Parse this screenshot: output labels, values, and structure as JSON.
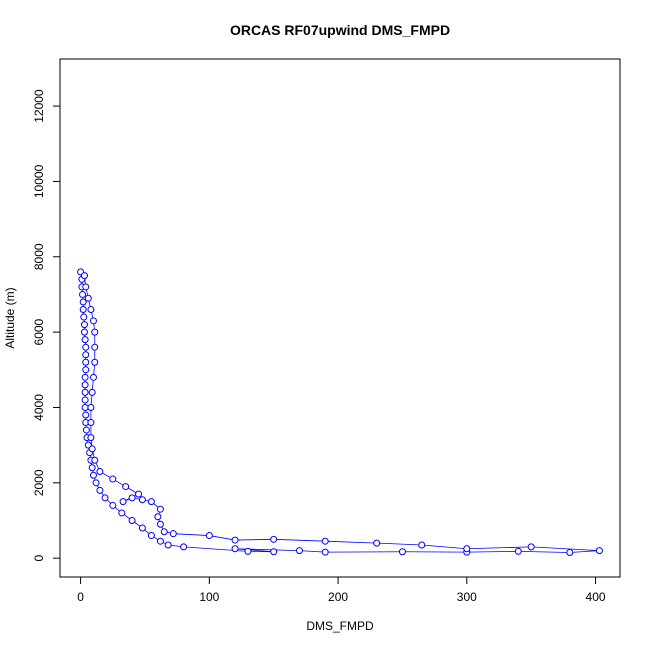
{
  "chart_data": {
    "type": "scatter",
    "title": "ORCAS RF07upwind DMS_FMPD",
    "xlabel": "DMS_FMPD",
    "ylabel": "Altitude (m)",
    "xlim": [
      -16,
      419
    ],
    "ylim": [
      -500,
      13250
    ],
    "xticks": [
      0,
      100,
      200,
      300,
      400
    ],
    "yticks": [
      0,
      2000,
      4000,
      6000,
      8000,
      10000,
      12000
    ],
    "series": [
      {
        "color": "#0000ff",
        "x": [
          0,
          1,
          1,
          1.5,
          2,
          2,
          2.5,
          3,
          3,
          3.5,
          4,
          4,
          4,
          4,
          3.5,
          3.5,
          3.5,
          3.5,
          3.5,
          4,
          4,
          4.5,
          5,
          6,
          7,
          8,
          9,
          10,
          12,
          15,
          19,
          25,
          32,
          40,
          48,
          55,
          62,
          68,
          80,
          130,
          150,
          120,
          170,
          190,
          250,
          300,
          340,
          380,
          403,
          350,
          300,
          265,
          230,
          190,
          150,
          120,
          100,
          72,
          65,
          62,
          60,
          62,
          55,
          48,
          40,
          33,
          45,
          35,
          25,
          15,
          11,
          9,
          8,
          8,
          8,
          9,
          10,
          11,
          11,
          11,
          10,
          8,
          6,
          4,
          3
        ],
        "values": [
          7600,
          7400,
          7200,
          7000,
          6800,
          6600,
          6400,
          6200,
          6000,
          5800,
          5600,
          5400,
          5200,
          5000,
          4800,
          4600,
          4400,
          4200,
          4000,
          3800,
          3600,
          3400,
          3200,
          3000,
          2800,
          2600,
          2400,
          2200,
          2000,
          1800,
          1600,
          1400,
          1200,
          1000,
          800,
          600,
          450,
          350,
          300,
          180,
          170,
          250,
          200,
          160,
          170,
          160,
          180,
          150,
          200,
          300,
          250,
          350,
          400,
          450,
          500,
          480,
          600,
          650,
          700,
          900,
          1100,
          1300,
          1500,
          1550,
          1600,
          1500,
          1700,
          1900,
          2100,
          2300,
          2600,
          2900,
          3200,
          3600,
          4000,
          4400,
          4800,
          5200,
          5600,
          6000,
          6300,
          6600,
          6900,
          7200,
          7500
        ]
      }
    ]
  }
}
